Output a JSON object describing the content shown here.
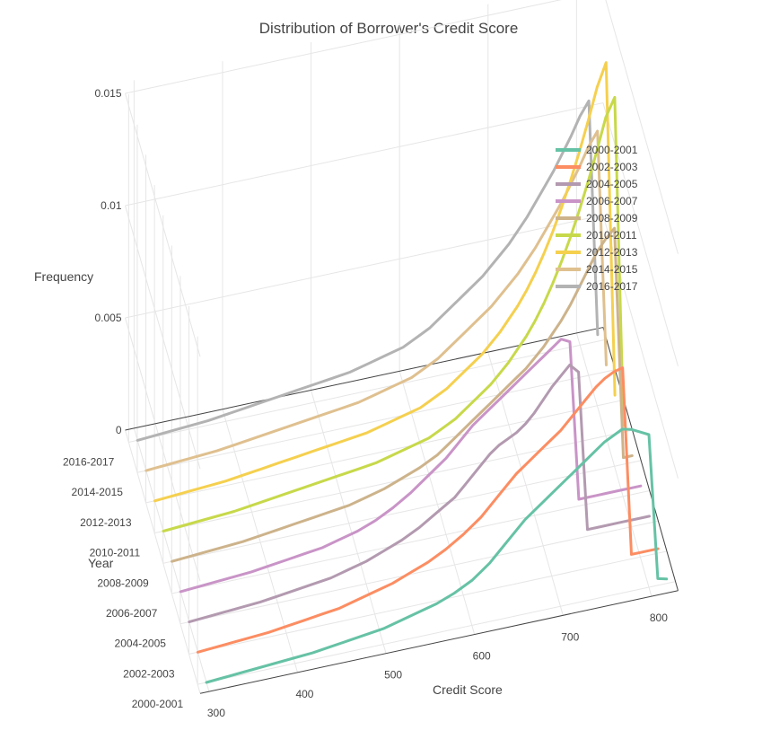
{
  "chart_data": {
    "type": "line",
    "projection": "3d",
    "title": "Distribution of Borrower's  Credit Score",
    "xlabel": "Credit Score",
    "ylabel": "Year",
    "zlabel": "Frequency",
    "x_ticks": [
      "300",
      "400",
      "500",
      "600",
      "700",
      "800"
    ],
    "y_ticks": [
      "2000-2001",
      "2002-2003",
      "2004-2005",
      "2006-2007",
      "2008-2009",
      "2010-2011",
      "2012-2013",
      "2014-2015",
      "2016-2017"
    ],
    "z_ticks": [
      "0",
      "0.005",
      "0.01",
      "0.015"
    ],
    "xlim": [
      290,
      830
    ],
    "zlim": [
      0,
      0.0155
    ],
    "legend_position": "top-right",
    "x": [
      300,
      320,
      340,
      360,
      380,
      400,
      420,
      440,
      460,
      480,
      500,
      520,
      540,
      560,
      580,
      600,
      610,
      620,
      630,
      640,
      650,
      660,
      670,
      680,
      690,
      700,
      710,
      720,
      730,
      740,
      750,
      760,
      770,
      780,
      790,
      800,
      810,
      820
    ],
    "series": [
      {
        "name": "2000-2001",
        "color": "#66c2a5",
        "values": [
          0,
          5e-05,
          0.0001,
          0.00015,
          0.0002,
          0.00025,
          0.0003,
          0.0004,
          0.0005,
          0.0006,
          0.0007,
          0.0009,
          0.0011,
          0.0013,
          0.0016,
          0.002,
          0.0023,
          0.0026,
          0.003,
          0.0034,
          0.0038,
          0.0042,
          0.0045,
          0.0048,
          0.0051,
          0.0054,
          0.0057,
          0.006,
          0.0063,
          0.0066,
          0.0069,
          0.0071,
          0.0073,
          0.0072,
          0.007,
          0.0068,
          0.0003,
          0.0002
        ]
      },
      {
        "name": "2002-2003",
        "color": "#fc8d62",
        "values": [
          0,
          5e-05,
          0.0001,
          0.00015,
          0.0002,
          0.0003,
          0.0004,
          0.0005,
          0.0006,
          0.0008,
          0.001,
          0.0012,
          0.0015,
          0.0018,
          0.0022,
          0.0027,
          0.003,
          0.0033,
          0.0037,
          0.0041,
          0.0045,
          0.0049,
          0.0052,
          0.0055,
          0.0058,
          0.0061,
          0.0064,
          0.0068,
          0.0072,
          0.0076,
          0.008,
          0.0083,
          0.0085,
          0.0086,
          0.0002,
          0.0002,
          0.0002,
          0.0002
        ]
      },
      {
        "name": "2004-2005",
        "color": "#b39ab0",
        "values": [
          0,
          5e-05,
          0.0001,
          0.00015,
          0.0002,
          0.0003,
          0.0004,
          0.0005,
          0.0006,
          0.0008,
          0.001,
          0.0013,
          0.0016,
          0.002,
          0.0025,
          0.003,
          0.0034,
          0.0038,
          0.0042,
          0.0046,
          0.0049,
          0.0051,
          0.0053,
          0.0056,
          0.006,
          0.0065,
          0.007,
          0.0074,
          0.0078,
          0.0074,
          0.0003,
          0.0003,
          0.0003,
          0.0003,
          0.0003,
          0.0003,
          0.0003,
          0.0003
        ]
      },
      {
        "name": "2006-2007",
        "color": "#c994c7",
        "values": [
          0,
          5e-05,
          0.0001,
          0.00015,
          0.0002,
          0.0003,
          0.0004,
          0.0005,
          0.0006,
          0.0008,
          0.001,
          0.0013,
          0.0017,
          0.0022,
          0.0028,
          0.0034,
          0.0038,
          0.0042,
          0.0046,
          0.0049,
          0.0052,
          0.0055,
          0.0058,
          0.0061,
          0.0064,
          0.0067,
          0.007,
          0.0073,
          0.0076,
          0.0074,
          0.0003,
          0.0003,
          0.0003,
          0.0003,
          0.0003,
          0.0003,
          0.0003,
          0.0003
        ]
      },
      {
        "name": "2008-2009",
        "color": "#cdb38b",
        "values": [
          0,
          5e-05,
          0.0001,
          0.00015,
          0.0002,
          0.0003,
          0.0004,
          0.0005,
          0.0006,
          0.0007,
          0.0008,
          0.001,
          0.0012,
          0.0015,
          0.0018,
          0.0022,
          0.0025,
          0.0028,
          0.0031,
          0.0034,
          0.0037,
          0.004,
          0.0043,
          0.0046,
          0.0049,
          0.0052,
          0.0056,
          0.006,
          0.0065,
          0.007,
          0.0076,
          0.0083,
          0.009,
          0.0097,
          0.0102,
          0.0106,
          0.0003,
          0.0003
        ]
      },
      {
        "name": "2010-2011",
        "color": "#c7d94a",
        "values": [
          0,
          5e-05,
          0.0001,
          0.00015,
          0.0002,
          0.0003,
          0.0004,
          0.0005,
          0.0006,
          0.0007,
          0.0008,
          0.0009,
          0.001,
          0.0012,
          0.0014,
          0.0016,
          0.0018,
          0.002,
          0.0022,
          0.0025,
          0.0028,
          0.0031,
          0.0034,
          0.0038,
          0.0042,
          0.0047,
          0.0052,
          0.0058,
          0.0065,
          0.0073,
          0.0082,
          0.0092,
          0.0103,
          0.0115,
          0.0128,
          0.0142,
          0.015,
          0.0003
        ]
      },
      {
        "name": "2012-2013",
        "color": "#f5d04f",
        "values": [
          0,
          5e-05,
          0.0001,
          0.00015,
          0.0002,
          0.0003,
          0.0004,
          0.0005,
          0.0006,
          0.0007,
          0.0008,
          0.0009,
          0.001,
          0.0012,
          0.0014,
          0.0016,
          0.0018,
          0.002,
          0.0022,
          0.0025,
          0.0028,
          0.0031,
          0.0034,
          0.0038,
          0.0042,
          0.0047,
          0.0052,
          0.0058,
          0.0065,
          0.0073,
          0.0082,
          0.0092,
          0.0103,
          0.0115,
          0.0128,
          0.0142,
          0.0152,
          0.0003
        ]
      },
      {
        "name": "2014-2015",
        "color": "#dfc08f",
        "values": [
          0,
          5e-05,
          0.0001,
          0.00015,
          0.0002,
          0.0003,
          0.0004,
          0.0005,
          0.0006,
          0.0007,
          0.0008,
          0.0009,
          0.001,
          0.0012,
          0.0014,
          0.0016,
          0.0018,
          0.002,
          0.0022,
          0.0025,
          0.0028,
          0.0031,
          0.0034,
          0.0037,
          0.004,
          0.0044,
          0.0048,
          0.0052,
          0.0057,
          0.0062,
          0.0068,
          0.0074,
          0.008,
          0.0087,
          0.0094,
          0.0102,
          0.0108,
          0.0003
        ]
      },
      {
        "name": "2016-2017",
        "color": "#b3b3b3",
        "values": [
          0,
          5e-05,
          0.0001,
          0.00015,
          0.0002,
          0.0003,
          0.0004,
          0.0005,
          0.0006,
          0.0007,
          0.0008,
          0.0009,
          0.001,
          0.0012,
          0.0014,
          0.0016,
          0.0018,
          0.002,
          0.0022,
          0.0025,
          0.0028,
          0.0031,
          0.0034,
          0.0037,
          0.004,
          0.0044,
          0.0048,
          0.0052,
          0.0057,
          0.0062,
          0.0068,
          0.0074,
          0.008,
          0.0087,
          0.0094,
          0.0102,
          0.0108,
          0.0003
        ]
      }
    ]
  }
}
